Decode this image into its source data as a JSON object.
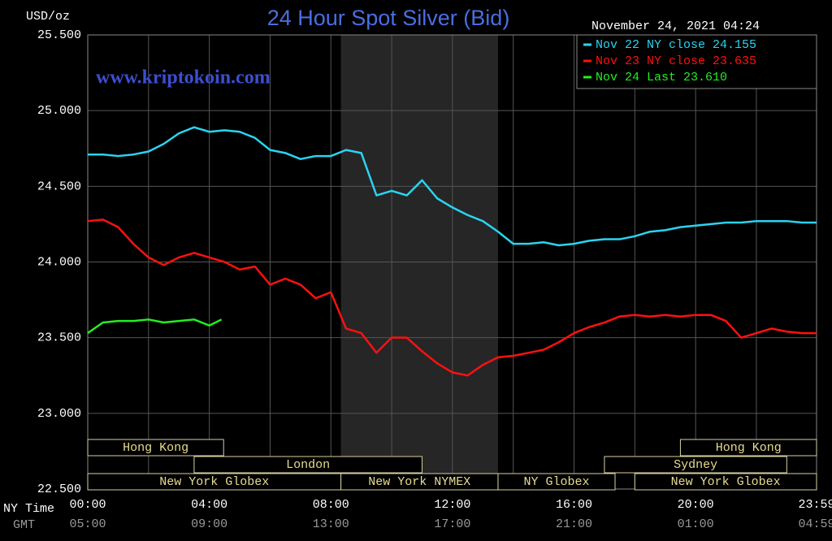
{
  "chart_data": {
    "type": "line",
    "title": "24 Hour Spot Silver (Bid)",
    "y_axis_label": "USD/oz",
    "timestamp": "November 24, 2021 04:24",
    "watermark": "www.kriptokoin.com",
    "x_axis_label": "NY Time",
    "x2_axis_label": "GMT",
    "xlim": [
      0,
      23.98
    ],
    "xticks": [
      {
        "value": 0,
        "label": "00:00"
      },
      {
        "value": 4,
        "label": "04:00"
      },
      {
        "value": 8,
        "label": "08:00"
      },
      {
        "value": 12,
        "label": "12:00"
      },
      {
        "value": 16,
        "label": "16:00"
      },
      {
        "value": 20,
        "label": "20:00"
      },
      {
        "value": 23.98,
        "label": "23:59"
      }
    ],
    "x2ticks": [
      {
        "value": 0,
        "label": "05:00"
      },
      {
        "value": 4,
        "label": "09:00"
      },
      {
        "value": 8,
        "label": "13:00"
      },
      {
        "value": 12,
        "label": "17:00"
      },
      {
        "value": 16,
        "label": "21:00"
      },
      {
        "value": 20,
        "label": "01:00"
      },
      {
        "value": 23.98,
        "label": "04:59"
      }
    ],
    "x_minor_gridlines": [
      2,
      6,
      10,
      14,
      18,
      22
    ],
    "ylim": [
      22.5,
      25.5
    ],
    "yticks": [
      {
        "value": 22.5,
        "label": "22.500"
      },
      {
        "value": 23,
        "label": "23.000"
      },
      {
        "value": 23.5,
        "label": "23.500"
      },
      {
        "value": 24,
        "label": "24.000"
      },
      {
        "value": 24.5,
        "label": "24.500"
      },
      {
        "value": 25,
        "label": "25.000"
      },
      {
        "value": 25.5,
        "label": "25.500"
      }
    ],
    "grid": true,
    "legend_position": "top-right",
    "shaded_range": [
      8.33,
      13.5
    ],
    "session_rows": [
      [
        {
          "label": "Hong Kong",
          "start": 0,
          "end": 4.47
        },
        {
          "label": "Hong Kong",
          "start": 19.5,
          "end": 23.98
        }
      ],
      [
        {
          "label": "London",
          "start": 3.5,
          "end": 11
        },
        {
          "label": "Sydney",
          "start": 17,
          "end": 23
        }
      ],
      [
        {
          "label": "New York Globex",
          "start": 0,
          "end": 8.33
        },
        {
          "label": "New York NYMEX",
          "start": 8.33,
          "end": 13.5
        },
        {
          "label": "NY Globex",
          "start": 13.5,
          "end": 17.35
        },
        {
          "label": "New York Globex",
          "start": 18,
          "end": 23.98
        }
      ]
    ],
    "series": [
      {
        "name": "Nov 22 NY close 24.155",
        "color": "#2ad4f0",
        "x": [
          0,
          0.5,
          1,
          1.5,
          2,
          2.5,
          3,
          3.5,
          4,
          4.5,
          5,
          5.5,
          6,
          6.5,
          7,
          7.5,
          8,
          8.5,
          9,
          9.5,
          10,
          10.5,
          11,
          11.5,
          12,
          12.5,
          13,
          13.5,
          14,
          14.5,
          15,
          15.5,
          16,
          16.5,
          17,
          17.5,
          18,
          18.5,
          19,
          19.5,
          20,
          20.5,
          21,
          21.5,
          22,
          22.5,
          23,
          23.5,
          23.98
        ],
        "values": [
          24.71,
          24.71,
          24.7,
          24.71,
          24.73,
          24.78,
          24.85,
          24.89,
          24.86,
          24.87,
          24.86,
          24.82,
          24.74,
          24.72,
          24.68,
          24.7,
          24.7,
          24.74,
          24.72,
          24.44,
          24.47,
          24.44,
          24.54,
          24.42,
          24.36,
          24.31,
          24.27,
          24.2,
          24.12,
          24.12,
          24.13,
          24.11,
          24.12,
          24.14,
          24.15,
          24.15,
          24.17,
          24.2,
          24.21,
          24.23,
          24.24,
          24.25,
          24.26,
          24.26,
          24.27,
          24.27,
          24.27,
          24.26,
          24.26
        ]
      },
      {
        "name": "Nov 23 NY close 23.635",
        "color": "#ff1010",
        "x": [
          0,
          0.5,
          1,
          1.5,
          2,
          2.5,
          3,
          3.5,
          4,
          4.5,
          5,
          5.5,
          6,
          6.5,
          7,
          7.5,
          8,
          8.5,
          9,
          9.5,
          10,
          10.5,
          11,
          11.5,
          12,
          12.5,
          13,
          13.5,
          14,
          14.5,
          15,
          15.5,
          16,
          16.5,
          17,
          17.5,
          18,
          18.5,
          19,
          19.5,
          20,
          20.5,
          21,
          21.5,
          22,
          22.5,
          23,
          23.5,
          23.98
        ],
        "values": [
          24.27,
          24.28,
          24.23,
          24.12,
          24.03,
          23.98,
          24.03,
          24.06,
          24.03,
          24.0,
          23.95,
          23.97,
          23.85,
          23.89,
          23.85,
          23.76,
          23.8,
          23.56,
          23.53,
          23.4,
          23.5,
          23.5,
          23.41,
          23.33,
          23.27,
          23.25,
          23.32,
          23.37,
          23.38,
          23.4,
          23.42,
          23.47,
          23.53,
          23.57,
          23.6,
          23.64,
          23.65,
          23.64,
          23.65,
          23.64,
          23.65,
          23.65,
          23.61,
          23.5,
          23.53,
          23.56,
          23.54,
          23.53,
          23.53
        ]
      },
      {
        "name": "Nov 24 Last 23.610",
        "color": "#22ee22",
        "x": [
          0,
          0.5,
          1,
          1.5,
          2,
          2.5,
          3,
          3.5,
          4,
          4.4
        ],
        "values": [
          23.53,
          23.6,
          23.61,
          23.61,
          23.62,
          23.6,
          23.61,
          23.62,
          23.58,
          23.62
        ]
      }
    ]
  }
}
